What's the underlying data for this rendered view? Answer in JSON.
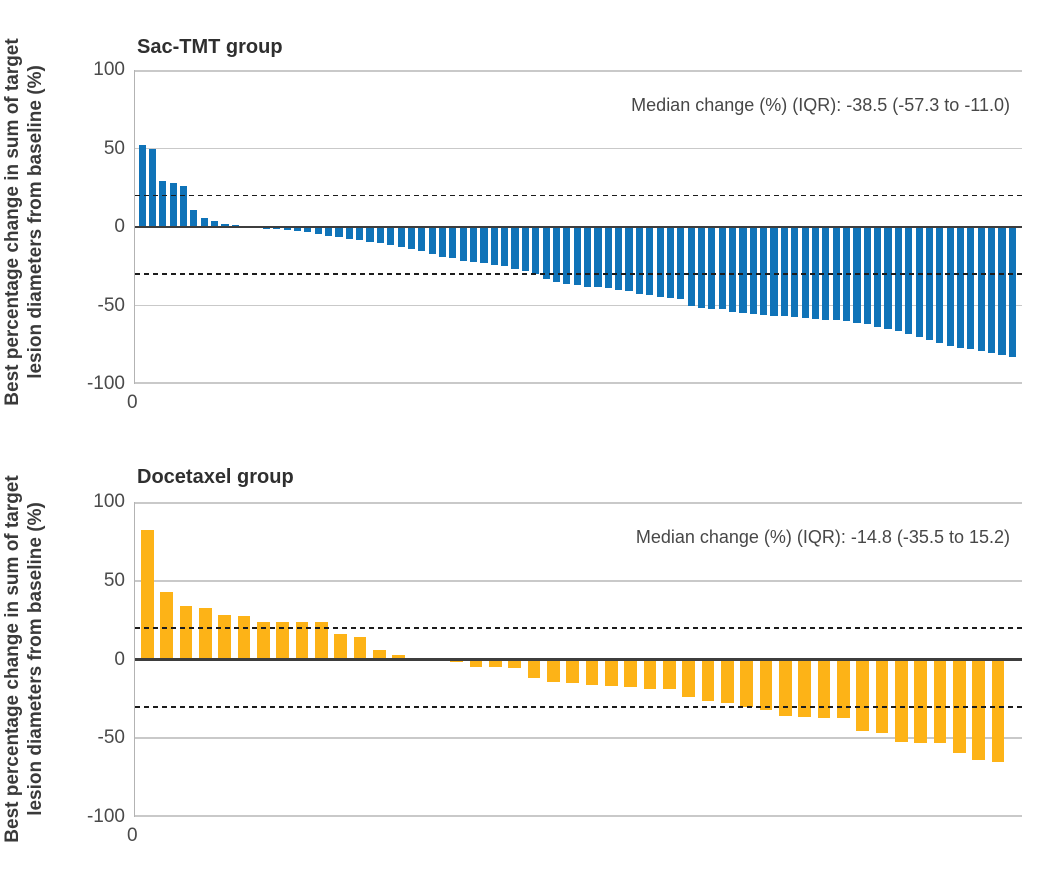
{
  "chart_data": [
    {
      "type": "bar",
      "title": "Sac-TMT group",
      "annotation": "Median change (%) (IQR): -38.5 (-57.3 to -11.0)",
      "bar_color": "#0F73B8",
      "ylabel_line1": "Best percentage change in sum of target",
      "ylabel_line2": "lesion diameters from baseline (%)",
      "ylabel": "Best percentage change in sum of target lesion diameters from baseline (%)",
      "x_tick_label": "0",
      "ylim": [
        -100,
        100
      ],
      "yticks": [
        100,
        50,
        0,
        -50,
        -100
      ],
      "reference_lines": [
        20,
        -30
      ],
      "grid": "horizontal",
      "values": [
        52,
        50,
        29,
        28,
        26,
        11,
        6,
        4,
        2,
        1,
        0.5,
        -0.5,
        -1,
        -1.5,
        -2,
        -2.5,
        -3,
        -4.5,
        -5.5,
        -6.5,
        -7.5,
        -8.5,
        -9.5,
        -10.5,
        -11.5,
        -12.5,
        -14,
        -15.5,
        -17,
        -19,
        -20,
        -21.5,
        -22,
        -23,
        -24.5,
        -25,
        -26.5,
        -28,
        -30,
        -33,
        -35,
        -36,
        -37,
        -38,
        -38.5,
        -39,
        -40,
        -41,
        -42.5,
        -43.5,
        -44.5,
        -45.5,
        -46,
        -50,
        -51.5,
        -52,
        -52.5,
        -54,
        -55,
        -55.5,
        -56,
        -56.5,
        -57,
        -57.5,
        -58,
        -58.5,
        -59,
        -59.5,
        -60,
        -61,
        -62,
        -63.5,
        -65,
        -66.5,
        -68,
        -70,
        -72,
        -74,
        -76,
        -77,
        -78,
        -79,
        -80,
        -81.5,
        -83
      ]
    },
    {
      "type": "bar",
      "title": "Docetaxel group",
      "annotation": "Median change (%) (IQR): -14.8 (-35.5 to 15.2)",
      "bar_color": "#FDB317",
      "ylabel_line1": "Best percentage change in sum of target",
      "ylabel_line2": "lesion diameters from baseline (%)",
      "ylabel": "Best percentage change in sum of target lesion diameters from baseline (%)",
      "x_tick_label": "0",
      "ylim": [
        -100,
        100
      ],
      "yticks": [
        100,
        50,
        0,
        -50,
        -100
      ],
      "reference_lines": [
        20,
        -30
      ],
      "grid": "horizontal",
      "values": [
        82,
        43,
        34,
        33,
        28,
        27.5,
        24,
        24,
        24,
        23.5,
        16,
        14,
        6,
        3,
        0.5,
        -1,
        -1.5,
        -4.5,
        -5,
        -5.5,
        -12,
        -14,
        -15,
        -16.5,
        -17,
        -17.5,
        -18.5,
        -19,
        -23.5,
        -26.5,
        -27.5,
        -30,
        -32,
        -36,
        -36.5,
        -37,
        -37,
        -45.5,
        -46.5,
        -52.5,
        -53,
        -53,
        -59.5,
        -63.5,
        -65
      ]
    }
  ]
}
